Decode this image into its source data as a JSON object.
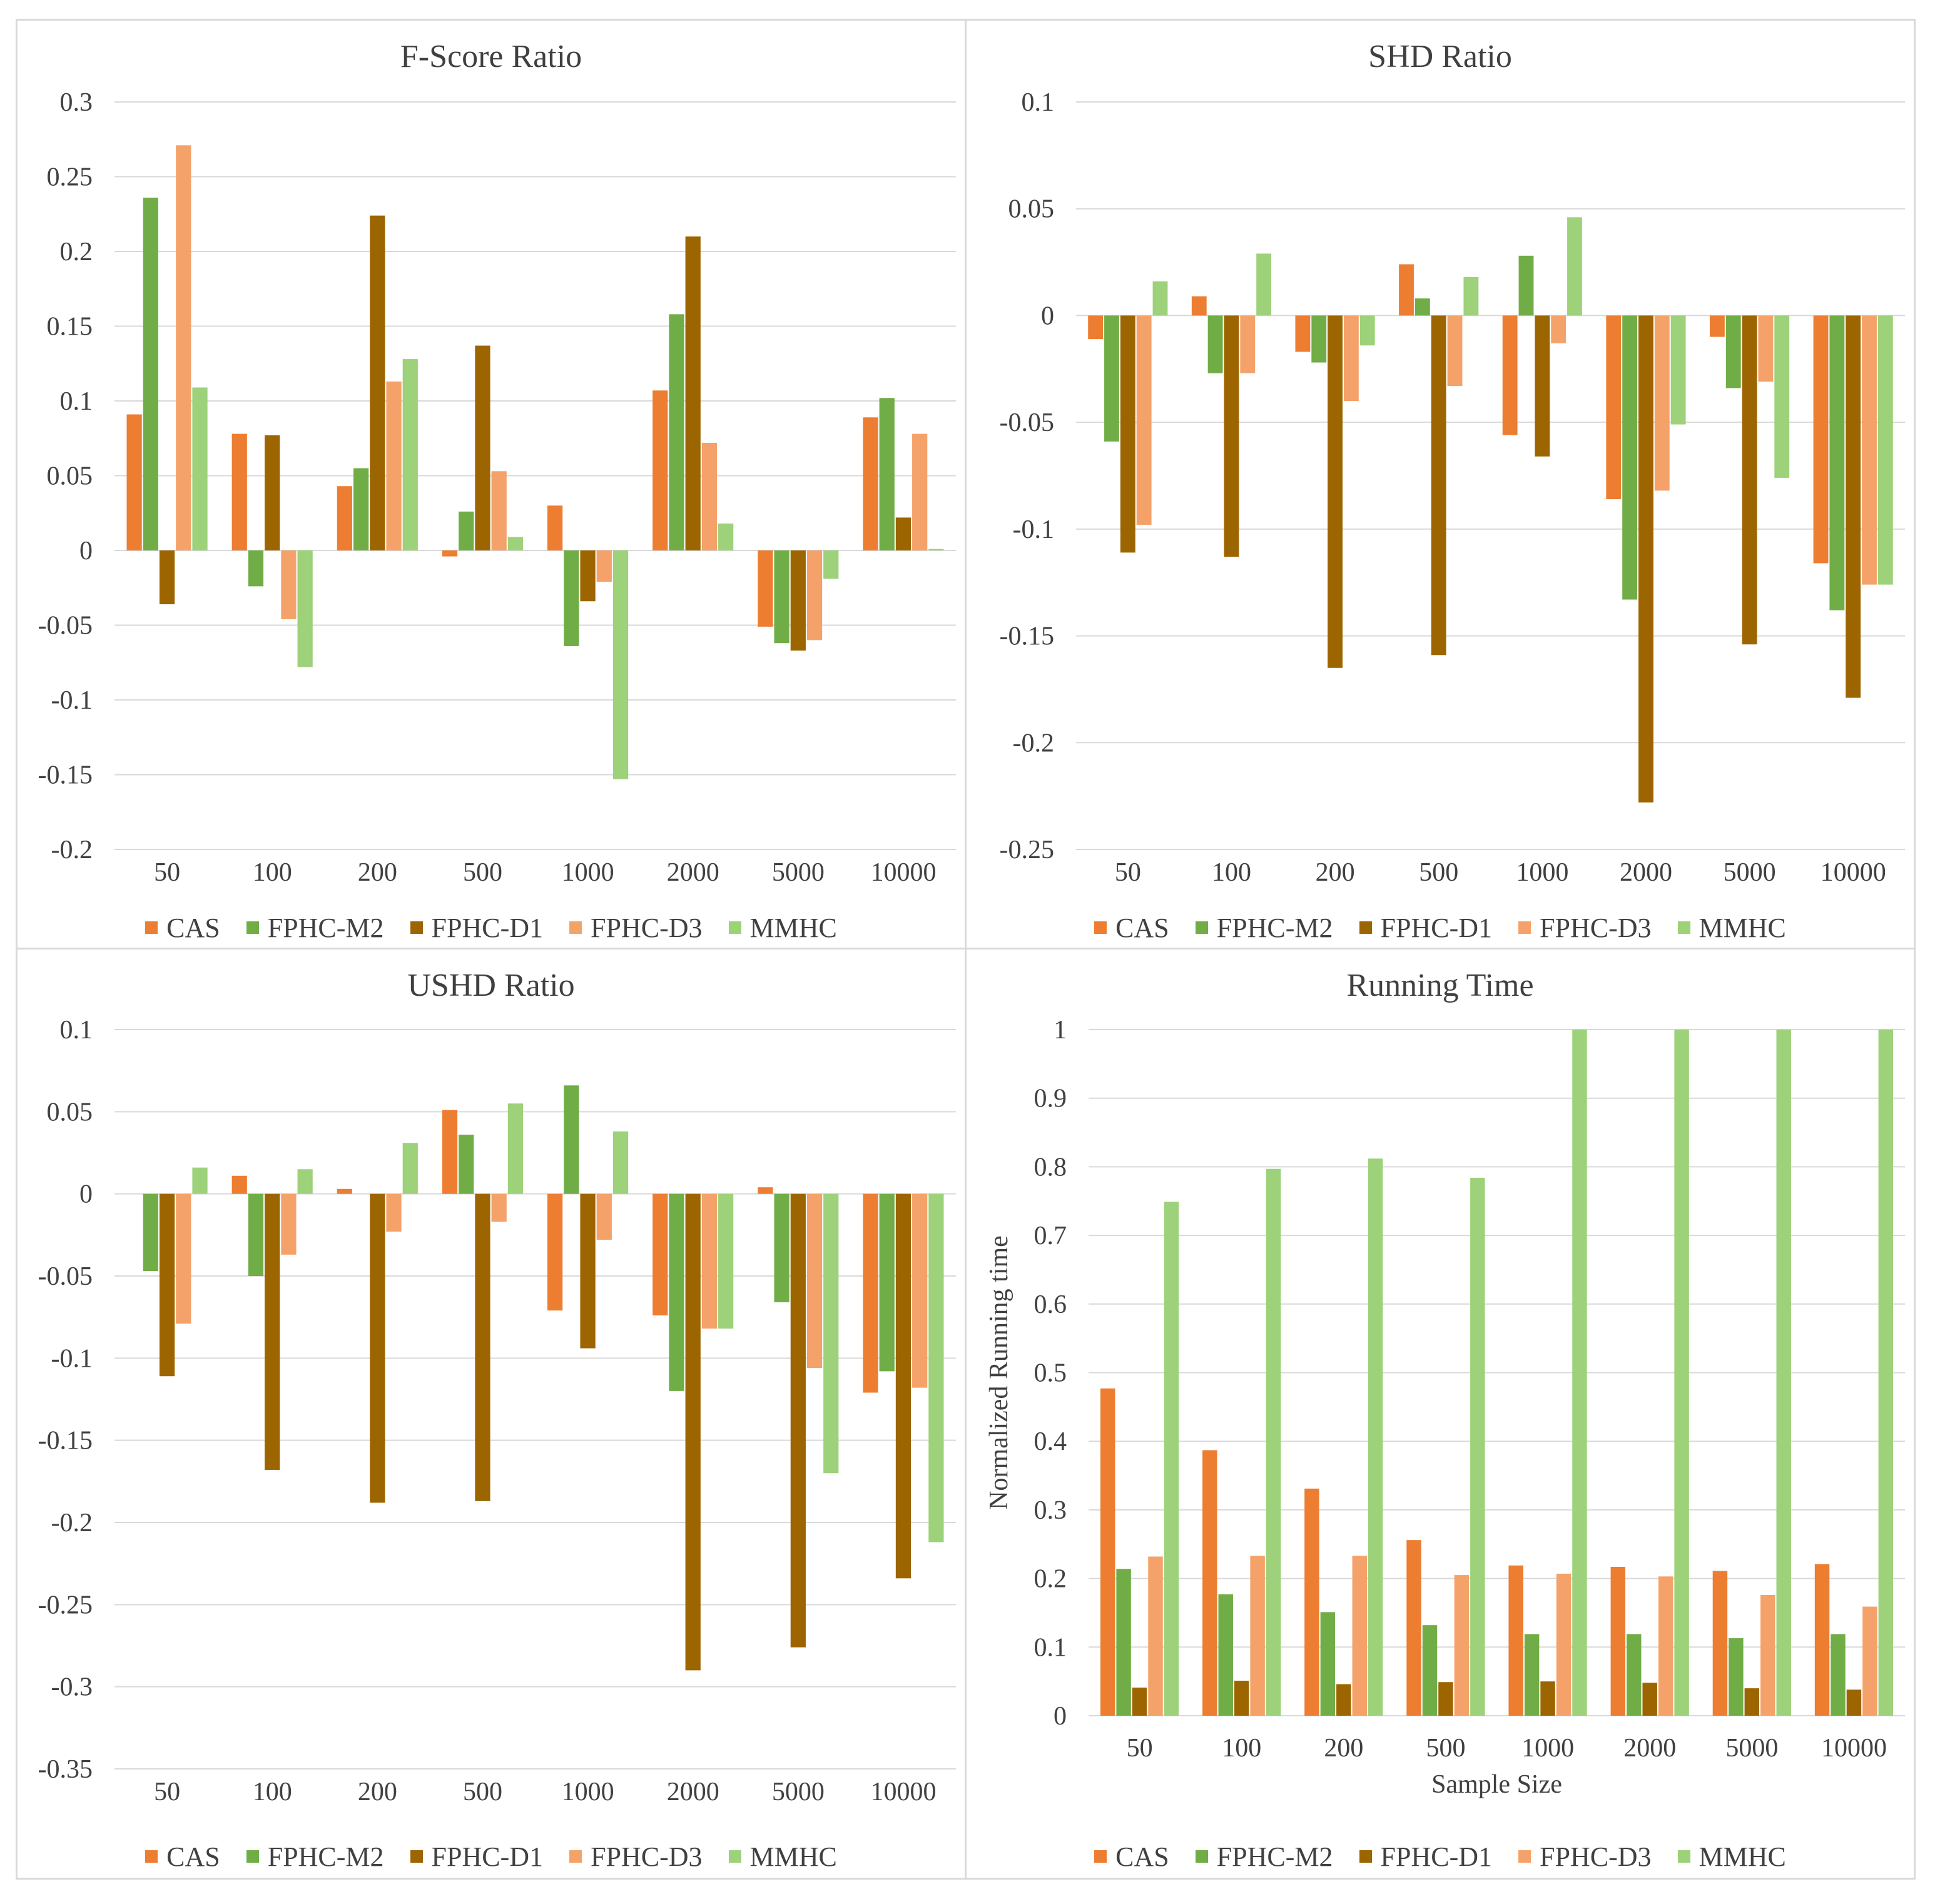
{
  "colors": {
    "CAS": "#ed7d31",
    "FPHC-M2": "#70ad47",
    "FPHC-D1": "#9c6500",
    "FPHC-D3": "#f4a26a",
    "MMHC": "#9dd17a"
  },
  "legend": [
    "CAS",
    "FPHC-M2",
    "FPHC-D1",
    "FPHC-D3",
    "MMHC"
  ],
  "chart_data": [
    {
      "type": "bar",
      "title": "F-Score Ratio",
      "xlabel": "",
      "ylabel": "",
      "categories": [
        "50",
        "100",
        "200",
        "500",
        "1000",
        "2000",
        "5000",
        "10000"
      ],
      "ylim": [
        -0.2,
        0.3
      ],
      "yticks": [
        "0.3",
        "0.25",
        "0.2",
        "0.15",
        "0.1",
        "0.05",
        "0",
        "-0.05",
        "-0.1",
        "-0.15",
        "-0.2"
      ],
      "grid": true,
      "legend_position": "bottom",
      "series": [
        {
          "name": "CAS",
          "values": [
            0.091,
            0.078,
            0.043,
            -0.004,
            0.03,
            0.107,
            -0.051,
            0.089
          ]
        },
        {
          "name": "FPHC-M2",
          "values": [
            0.236,
            -0.024,
            0.055,
            0.026,
            -0.064,
            0.158,
            -0.062,
            0.102
          ]
        },
        {
          "name": "FPHC-D1",
          "values": [
            -0.036,
            0.077,
            0.224,
            0.137,
            -0.034,
            0.21,
            -0.067,
            0.022
          ]
        },
        {
          "name": "FPHC-D3",
          "values": [
            0.271,
            -0.046,
            0.113,
            0.053,
            -0.021,
            0.072,
            -0.06,
            0.078
          ]
        },
        {
          "name": "MMHC",
          "values": [
            0.109,
            -0.078,
            0.128,
            0.009,
            -0.153,
            0.018,
            -0.019,
            0.001
          ]
        }
      ]
    },
    {
      "type": "bar",
      "title": "SHD Ratio",
      "xlabel": "",
      "ylabel": "",
      "categories": [
        "50",
        "100",
        "200",
        "500",
        "1000",
        "2000",
        "5000",
        "10000"
      ],
      "ylim": [
        -0.25,
        0.1
      ],
      "yticks": [
        "0.1",
        "0.05",
        "0",
        "-0.05",
        "-0.1",
        "-0.15",
        "-0.2",
        "-0.25"
      ],
      "grid": true,
      "legend_position": "bottom",
      "series": [
        {
          "name": "CAS",
          "values": [
            -0.011,
            0.009,
            -0.017,
            0.024,
            -0.056,
            -0.086,
            -0.01,
            -0.116
          ]
        },
        {
          "name": "FPHC-M2",
          "values": [
            -0.059,
            -0.027,
            -0.022,
            0.008,
            0.028,
            -0.133,
            -0.034,
            -0.138
          ]
        },
        {
          "name": "FPHC-D1",
          "values": [
            -0.111,
            -0.113,
            -0.165,
            -0.159,
            -0.066,
            -0.228,
            -0.154,
            -0.179
          ]
        },
        {
          "name": "FPHC-D3",
          "values": [
            -0.098,
            -0.027,
            -0.04,
            -0.033,
            -0.013,
            -0.082,
            -0.031,
            -0.126
          ]
        },
        {
          "name": "MMHC",
          "values": [
            0.016,
            0.029,
            -0.014,
            0.018,
            0.046,
            -0.051,
            -0.076,
            -0.126
          ]
        }
      ]
    },
    {
      "type": "bar",
      "title": "USHD Ratio",
      "xlabel": "",
      "ylabel": "",
      "categories": [
        "50",
        "100",
        "200",
        "500",
        "1000",
        "2000",
        "5000",
        "10000"
      ],
      "ylim": [
        -0.35,
        0.1
      ],
      "yticks": [
        "0.1",
        "0.05",
        "0",
        "-0.05",
        "-0.1",
        "-0.15",
        "-0.2",
        "-0.25",
        "-0.3",
        "-0.35"
      ],
      "grid": true,
      "legend_position": "bottom",
      "series": [
        {
          "name": "CAS",
          "values": [
            0.0,
            0.011,
            0.003,
            0.051,
            -0.071,
            -0.074,
            0.004,
            -0.121
          ]
        },
        {
          "name": "FPHC-M2",
          "values": [
            -0.047,
            -0.05,
            0.0,
            0.036,
            0.066,
            -0.12,
            -0.066,
            -0.108
          ]
        },
        {
          "name": "FPHC-D1",
          "values": [
            -0.111,
            -0.168,
            -0.188,
            -0.187,
            -0.094,
            -0.29,
            -0.276,
            -0.234
          ]
        },
        {
          "name": "FPHC-D3",
          "values": [
            -0.079,
            -0.037,
            -0.023,
            -0.017,
            -0.028,
            -0.082,
            -0.106,
            -0.118
          ]
        },
        {
          "name": "MMHC",
          "values": [
            0.016,
            0.015,
            0.031,
            0.055,
            0.038,
            -0.082,
            -0.17,
            -0.212
          ]
        }
      ]
    },
    {
      "type": "bar",
      "title": "Running Time",
      "xlabel": "Sample Size",
      "ylabel": "Normalized Running time",
      "categories": [
        "50",
        "100",
        "200",
        "500",
        "1000",
        "2000",
        "5000",
        "10000"
      ],
      "ylim": [
        0,
        1
      ],
      "yticks": [
        "1",
        "0.9",
        "0.8",
        "0.7",
        "0.6",
        "0.5",
        "0.4",
        "0.3",
        "0.2",
        "0.1",
        "0"
      ],
      "grid": true,
      "legend_position": "bottom",
      "series": [
        {
          "name": "CAS",
          "values": [
            0.477,
            0.387,
            0.331,
            0.256,
            0.219,
            0.217,
            0.211,
            0.221
          ]
        },
        {
          "name": "FPHC-M2",
          "values": [
            0.214,
            0.177,
            0.151,
            0.132,
            0.119,
            0.119,
            0.113,
            0.119
          ]
        },
        {
          "name": "FPHC-D1",
          "values": [
            0.041,
            0.051,
            0.046,
            0.049,
            0.05,
            0.048,
            0.04,
            0.038
          ]
        },
        {
          "name": "FPHC-D3",
          "values": [
            0.232,
            0.233,
            0.233,
            0.205,
            0.207,
            0.203,
            0.176,
            0.159
          ]
        },
        {
          "name": "MMHC",
          "values": [
            0.749,
            0.797,
            0.812,
            0.784,
            1.0,
            1.0,
            1.0,
            1.0
          ]
        }
      ]
    }
  ]
}
